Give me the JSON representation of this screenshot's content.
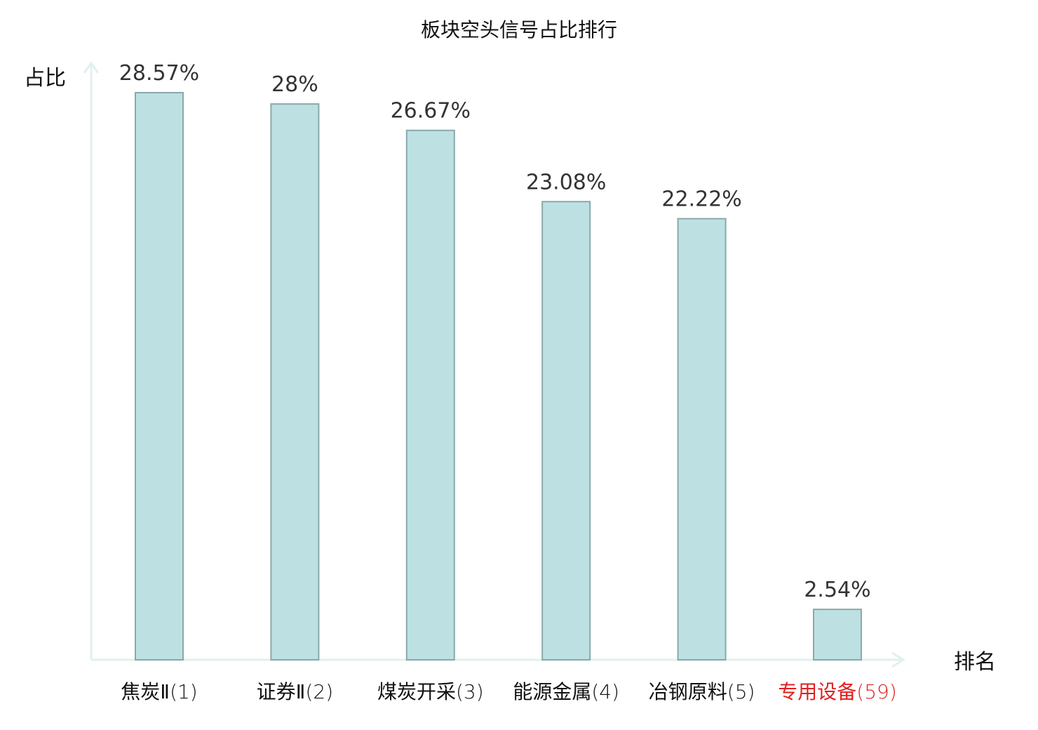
{
  "chart_data": {
    "type": "bar",
    "title": "板块空头信号占比排行",
    "ylabel": "占比",
    "xlabel": "排名",
    "categories": [
      {
        "name": "焦炭Ⅱ",
        "rank": "(1)",
        "highlight": false
      },
      {
        "name": "证券Ⅱ",
        "rank": "(2)",
        "highlight": false
      },
      {
        "name": "煤炭开采",
        "rank": "(3)",
        "highlight": false
      },
      {
        "name": "能源金属",
        "rank": "(4)",
        "highlight": false
      },
      {
        "name": "冶钢原料",
        "rank": "(5)",
        "highlight": false
      },
      {
        "name": "专用设备",
        "rank": "(59)",
        "highlight": true
      }
    ],
    "values": [
      28.57,
      28,
      26.67,
      23.08,
      22.22,
      2.54
    ],
    "value_labels": [
      "28.57%",
      "28%",
      "26.67%",
      "23.08%",
      "22.22%",
      "2.54%"
    ],
    "ylim": [
      0,
      30
    ],
    "grid": false,
    "colors": {
      "bar_fill": "#bde1e3",
      "bar_stroke": "#8aa8a9",
      "axis": "#e0f1ef",
      "category_text": "#111111",
      "highlight_text": "#e02020"
    }
  }
}
